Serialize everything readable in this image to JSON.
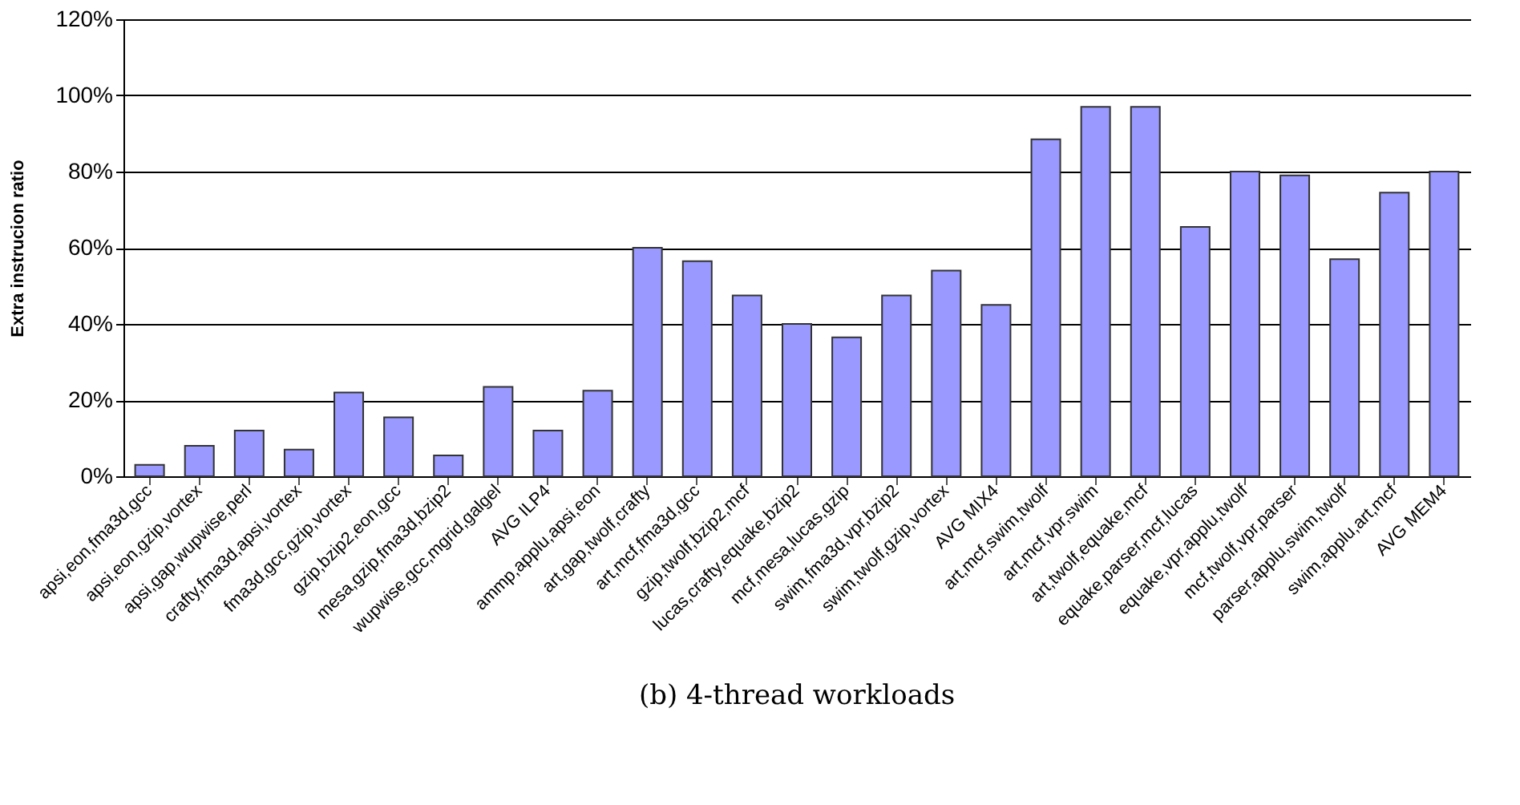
{
  "chart_data": {
    "type": "bar",
    "title": "(b) 4-thread workloads",
    "ylabel": "Extra instrucion ratio",
    "categories": [
      "apsi,eon,fma3d,gcc",
      "apsi,eon,gzip,vortex",
      "apsi,gap,wupwise,perl",
      "crafty,fma3d,apsi,vortex",
      "fma3d,gcc,gzip,vortex",
      "gzip,bzip2,eon,gcc",
      "mesa,gzip,fma3d,bzip2",
      "wupwise,gcc,mgrid,galgel",
      "AVG ILP4",
      "ammp,applu,apsi,eon",
      "art,gap,twolf,crafty",
      "art,mcf,fma3d,gcc",
      "gzip,twolf,bzip2,mcf",
      "lucas,crafty,equake,bzip2",
      "mcf,mesa,lucas,gzip",
      "swim,fma3d,vpr,bzip2",
      "swim,twolf,gzip,vortex",
      "AVG MIX4",
      "art,mcf,swim,twolf",
      "art,mcf,vpr,swim",
      "art,twolf,equake,mcf",
      "equake,parser,mcf,lucas",
      "equake,vpr,applu,twolf",
      "mcf,twolf,vpr,parser",
      "parser,applu,swim,twolf",
      "swim,applu,art,mcf",
      "AVG MEM4"
    ],
    "values": [
      3,
      8,
      12,
      7,
      22,
      15.5,
      5.5,
      23.5,
      12,
      22.5,
      60,
      56.5,
      47.5,
      40,
      36.5,
      47.5,
      54,
      45,
      88.5,
      97,
      97,
      65.5,
      80,
      79,
      57,
      74.5,
      80
    ],
    "color": "#9999ff",
    "ylim": [
      0,
      120
    ],
    "yticks": [
      {
        "value": 0,
        "label": "0%"
      },
      {
        "value": 20,
        "label": "20%"
      },
      {
        "value": 40,
        "label": "40%"
      },
      {
        "value": 60,
        "label": "60%"
      },
      {
        "value": 80,
        "label": "80%"
      },
      {
        "value": 100,
        "label": "100%"
      },
      {
        "value": 120,
        "label": "120%"
      }
    ],
    "grid": "y"
  }
}
